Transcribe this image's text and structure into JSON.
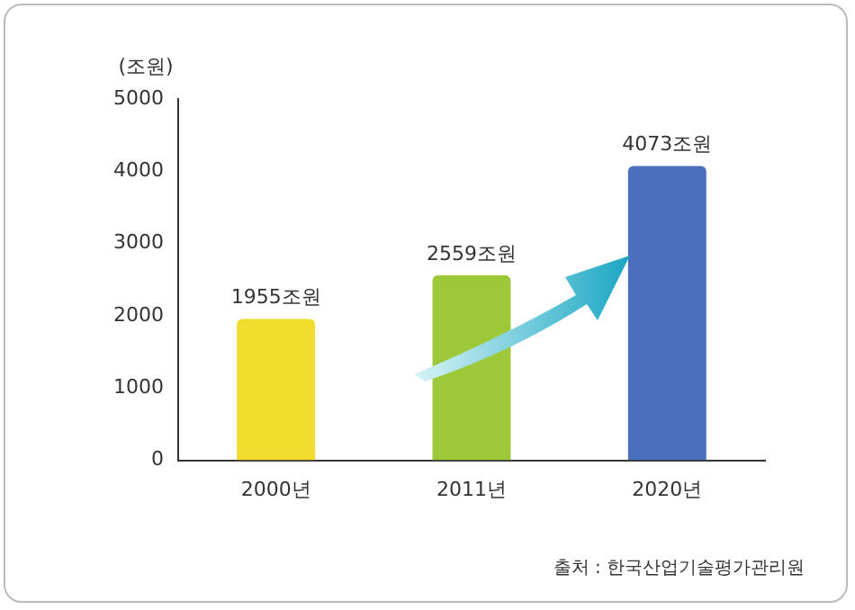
{
  "chart_data": {
    "type": "bar",
    "ylabel": "(조원)",
    "categories": [
      "2000년",
      "2011년",
      "2020년"
    ],
    "values": [
      1955,
      2559,
      4073
    ],
    "colors": [
      "#f2dc2e",
      "#9cc83a",
      "#4a70bd"
    ],
    "value_labels": [
      "1955조원",
      "2559조원",
      "4073조원"
    ],
    "ylim": [
      0,
      5000
    ],
    "yticks": [
      0,
      1000,
      2000,
      3000,
      4000,
      5000
    ],
    "grid": false,
    "legend": false,
    "annotations": [
      "출처 : 한국산업기술평가관리원"
    ]
  }
}
